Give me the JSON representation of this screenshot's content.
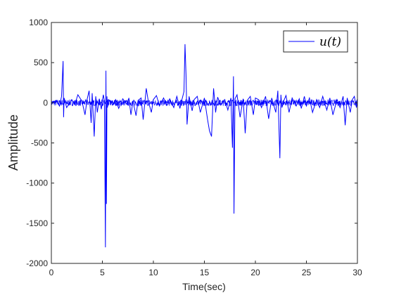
{
  "chart_data": {
    "type": "line",
    "title": "",
    "xlabel": "Time(sec)",
    "ylabel": "Amplitude",
    "xlim": [
      0,
      30
    ],
    "ylim": [
      -2000,
      1000
    ],
    "xticks": [
      0,
      5,
      10,
      15,
      20,
      25,
      30
    ],
    "yticks": [
      -2000,
      -1500,
      -1000,
      -500,
      0,
      500,
      1000
    ],
    "grid": false,
    "legend_position": "top-right",
    "colors": {
      "series": "#0000ff",
      "axes": "#262626"
    },
    "series": [
      {
        "name": "u(t)",
        "baseline_band": [
          -40,
          40
        ],
        "x": [
          0.0,
          0.5,
          0.8,
          1.0,
          1.15,
          1.2,
          1.25,
          1.5,
          2.0,
          2.3,
          2.6,
          3.0,
          3.3,
          3.5,
          3.7,
          3.9,
          4.0,
          4.2,
          4.35,
          4.5,
          4.7,
          4.9,
          5.0,
          5.1,
          5.2,
          5.3,
          5.35,
          5.4,
          5.45,
          5.5,
          5.6,
          5.8,
          6.0,
          6.3,
          6.6,
          7.0,
          7.4,
          7.6,
          7.8,
          8.0,
          8.3,
          8.5,
          8.8,
          9.0,
          9.3,
          9.5,
          9.8,
          10.0,
          10.3,
          10.6,
          11.0,
          11.3,
          11.6,
          12.0,
          12.3,
          12.6,
          12.8,
          13.0,
          13.1,
          13.2,
          13.3,
          13.5,
          13.8,
          14.0,
          14.3,
          14.6,
          15.0,
          15.3,
          15.5,
          15.7,
          15.9,
          16.0,
          16.1,
          16.3,
          16.6,
          17.0,
          17.3,
          17.6,
          17.75,
          17.85,
          17.9,
          18.0,
          18.2,
          18.5,
          18.8,
          19.0,
          19.2,
          19.5,
          19.8,
          20.0,
          20.3,
          20.6,
          21.0,
          21.3,
          21.6,
          22.0,
          22.2,
          22.4,
          22.5,
          22.6,
          22.8,
          23.0,
          23.3,
          23.6,
          24.0,
          24.3,
          24.5,
          24.8,
          25.0,
          25.3,
          25.6,
          26.0,
          26.3,
          26.6,
          27.0,
          27.3,
          27.6,
          28.0,
          28.3,
          28.6,
          28.8,
          29.0,
          29.3,
          29.5,
          29.7,
          29.9,
          30.0
        ],
        "y": [
          0,
          30,
          -40,
          80,
          520,
          -180,
          60,
          -60,
          40,
          -20,
          100,
          20,
          -150,
          40,
          150,
          -250,
          120,
          -420,
          80,
          -120,
          50,
          -80,
          30,
          100,
          20,
          -1800,
          400,
          -1260,
          80,
          -60,
          40,
          20,
          -30,
          40,
          -70,
          50,
          -20,
          60,
          -150,
          20,
          -160,
          30,
          60,
          -210,
          180,
          20,
          -120,
          40,
          90,
          -40,
          60,
          -30,
          50,
          -60,
          80,
          -70,
          40,
          140,
          730,
          350,
          -270,
          80,
          -100,
          40,
          80,
          -120,
          60,
          -200,
          -350,
          -420,
          180,
          40,
          -120,
          70,
          -30,
          40,
          -90,
          60,
          -560,
          330,
          -1380,
          50,
          100,
          -180,
          50,
          -380,
          30,
          80,
          -150,
          60,
          40,
          -60,
          80,
          -200,
          60,
          -120,
          150,
          -690,
          100,
          -60,
          30,
          90,
          -120,
          60,
          -40,
          50,
          -70,
          80,
          -40,
          60,
          -120,
          40,
          -60,
          80,
          -90,
          60,
          -150,
          40,
          -60,
          80,
          -280,
          60,
          -120,
          40,
          80,
          -60,
          20
        ]
      }
    ]
  }
}
